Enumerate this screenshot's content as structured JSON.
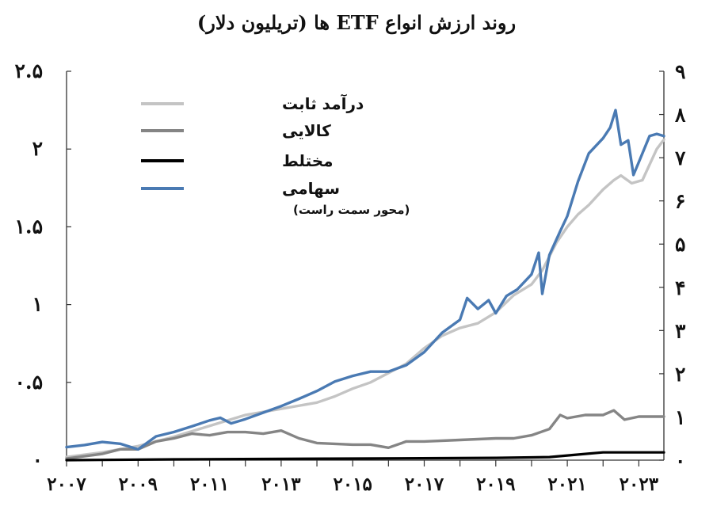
{
  "chart_data": {
    "type": "line",
    "title": "روند ارزش انواع ETF ها (تریلیون دلار)",
    "xlabel": "",
    "ylabel": "",
    "x_ticks": [
      {
        "year": 2007,
        "label": "۲۰۰۷"
      },
      {
        "year": 2009,
        "label": "۲۰۰۹"
      },
      {
        "year": 2011,
        "label": "۲۰۱۱"
      },
      {
        "year": 2013,
        "label": "۲۰۱۳"
      },
      {
        "year": 2015,
        "label": "۲۰۱۵"
      },
      {
        "year": 2017,
        "label": "۲۰۱۷"
      },
      {
        "year": 2019,
        "label": "۲۰۱۹"
      },
      {
        "year": 2021,
        "label": "۲۰۲۱"
      },
      {
        "year": 2023,
        "label": "۲۰۲۳"
      }
    ],
    "xlim": [
      2007,
      2023.7
    ],
    "ylim_left": [
      0,
      2.5
    ],
    "ylim_right": [
      0,
      9
    ],
    "y_ticks_left": [
      {
        "value": 0,
        "label": "۰"
      },
      {
        "value": 0.5,
        "label": "۰.۵"
      },
      {
        "value": 1,
        "label": "۱"
      },
      {
        "value": 1.5,
        "label": "۱.۵"
      },
      {
        "value": 2,
        "label": "۲"
      },
      {
        "value": 2.5,
        "label": "۲.۵"
      }
    ],
    "y_ticks_right": [
      {
        "value": 0,
        "label": "۰"
      },
      {
        "value": 1,
        "label": "۱"
      },
      {
        "value": 2,
        "label": "۲"
      },
      {
        "value": 3,
        "label": "۳"
      },
      {
        "value": 4,
        "label": "۴"
      },
      {
        "value": 5,
        "label": "۵"
      },
      {
        "value": 6,
        "label": "۶"
      },
      {
        "value": 7,
        "label": "۷"
      },
      {
        "value": 8,
        "label": "۸"
      },
      {
        "value": 9,
        "label": "۹"
      }
    ],
    "grid": false,
    "legend_position": "top-left",
    "legend_note": "(محور سمت راست)",
    "series": [
      {
        "name": "درآمد ثابت",
        "axis": "left",
        "color": "#c4c4c4",
        "points": [
          [
            2007.0,
            0.02
          ],
          [
            2008.0,
            0.05
          ],
          [
            2009.0,
            0.09
          ],
          [
            2010.0,
            0.15
          ],
          [
            2011.0,
            0.22
          ],
          [
            2012.0,
            0.29
          ],
          [
            2013.0,
            0.33
          ],
          [
            2014.0,
            0.37
          ],
          [
            2014.5,
            0.41
          ],
          [
            2015.0,
            0.46
          ],
          [
            2015.5,
            0.5
          ],
          [
            2016.0,
            0.56
          ],
          [
            2016.5,
            0.62
          ],
          [
            2017.0,
            0.72
          ],
          [
            2017.5,
            0.8
          ],
          [
            2018.0,
            0.85
          ],
          [
            2018.5,
            0.88
          ],
          [
            2019.0,
            0.95
          ],
          [
            2019.5,
            1.06
          ],
          [
            2020.0,
            1.13
          ],
          [
            2020.3,
            1.22
          ],
          [
            2020.7,
            1.4
          ],
          [
            2021.0,
            1.5
          ],
          [
            2021.3,
            1.58
          ],
          [
            2021.6,
            1.64
          ],
          [
            2022.0,
            1.74
          ],
          [
            2022.3,
            1.8
          ],
          [
            2022.5,
            1.83
          ],
          [
            2022.8,
            1.78
          ],
          [
            2023.1,
            1.8
          ],
          [
            2023.5,
            2.0
          ],
          [
            2023.7,
            2.06
          ]
        ]
      },
      {
        "name": "کالایی",
        "axis": "left",
        "color": "#858585",
        "points": [
          [
            2007.0,
            0.01
          ],
          [
            2008.0,
            0.04
          ],
          [
            2008.5,
            0.07
          ],
          [
            2009.0,
            0.07
          ],
          [
            2009.5,
            0.12
          ],
          [
            2010.0,
            0.14
          ],
          [
            2010.5,
            0.17
          ],
          [
            2011.0,
            0.16
          ],
          [
            2011.5,
            0.18
          ],
          [
            2012.0,
            0.18
          ],
          [
            2012.5,
            0.17
          ],
          [
            2013.0,
            0.19
          ],
          [
            2013.5,
            0.14
          ],
          [
            2014.0,
            0.11
          ],
          [
            2015.0,
            0.1
          ],
          [
            2015.5,
            0.1
          ],
          [
            2016.0,
            0.08
          ],
          [
            2016.5,
            0.12
          ],
          [
            2017.0,
            0.12
          ],
          [
            2018.0,
            0.13
          ],
          [
            2019.0,
            0.14
          ],
          [
            2019.5,
            0.14
          ],
          [
            2020.0,
            0.16
          ],
          [
            2020.5,
            0.2
          ],
          [
            2020.8,
            0.29
          ],
          [
            2021.0,
            0.27
          ],
          [
            2021.5,
            0.29
          ],
          [
            2022.0,
            0.29
          ],
          [
            2022.3,
            0.32
          ],
          [
            2022.6,
            0.26
          ],
          [
            2023.0,
            0.28
          ],
          [
            2023.7,
            0.28
          ]
        ]
      },
      {
        "name": "مختلط",
        "axis": "left",
        "color": "#000000",
        "points": [
          [
            2007.0,
            0.0
          ],
          [
            2010.0,
            0.005
          ],
          [
            2015.0,
            0.01
          ],
          [
            2019.0,
            0.015
          ],
          [
            2020.0,
            0.018
          ],
          [
            2020.5,
            0.02
          ],
          [
            2021.0,
            0.03
          ],
          [
            2021.5,
            0.04
          ],
          [
            2022.0,
            0.05
          ],
          [
            2022.5,
            0.05
          ],
          [
            2023.0,
            0.05
          ],
          [
            2023.7,
            0.05
          ]
        ]
      },
      {
        "name": "سهامی",
        "axis": "right",
        "color": "#4a7ab3",
        "points": [
          [
            2007.0,
            0.3
          ],
          [
            2007.5,
            0.35
          ],
          [
            2008.0,
            0.42
          ],
          [
            2008.5,
            0.38
          ],
          [
            2009.0,
            0.25
          ],
          [
            2009.5,
            0.55
          ],
          [
            2010.0,
            0.65
          ],
          [
            2010.5,
            0.78
          ],
          [
            2011.0,
            0.92
          ],
          [
            2011.3,
            0.98
          ],
          [
            2011.6,
            0.85
          ],
          [
            2012.0,
            0.95
          ],
          [
            2012.5,
            1.1
          ],
          [
            2013.0,
            1.25
          ],
          [
            2013.5,
            1.42
          ],
          [
            2014.0,
            1.6
          ],
          [
            2014.5,
            1.82
          ],
          [
            2015.0,
            1.95
          ],
          [
            2015.5,
            2.05
          ],
          [
            2016.0,
            2.05
          ],
          [
            2016.5,
            2.2
          ],
          [
            2017.0,
            2.5
          ],
          [
            2017.5,
            2.95
          ],
          [
            2018.0,
            3.25
          ],
          [
            2018.2,
            3.75
          ],
          [
            2018.5,
            3.5
          ],
          [
            2018.8,
            3.7
          ],
          [
            2019.0,
            3.4
          ],
          [
            2019.3,
            3.8
          ],
          [
            2019.6,
            3.95
          ],
          [
            2020.0,
            4.3
          ],
          [
            2020.2,
            4.8
          ],
          [
            2020.3,
            3.85
          ],
          [
            2020.5,
            4.75
          ],
          [
            2020.8,
            5.3
          ],
          [
            2021.0,
            5.65
          ],
          [
            2021.3,
            6.45
          ],
          [
            2021.6,
            7.1
          ],
          [
            2022.0,
            7.45
          ],
          [
            2022.2,
            7.7
          ],
          [
            2022.35,
            8.1
          ],
          [
            2022.5,
            7.3
          ],
          [
            2022.7,
            7.4
          ],
          [
            2022.85,
            6.6
          ],
          [
            2023.0,
            6.9
          ],
          [
            2023.3,
            7.5
          ],
          [
            2023.5,
            7.55
          ],
          [
            2023.7,
            7.5
          ]
        ]
      }
    ]
  }
}
